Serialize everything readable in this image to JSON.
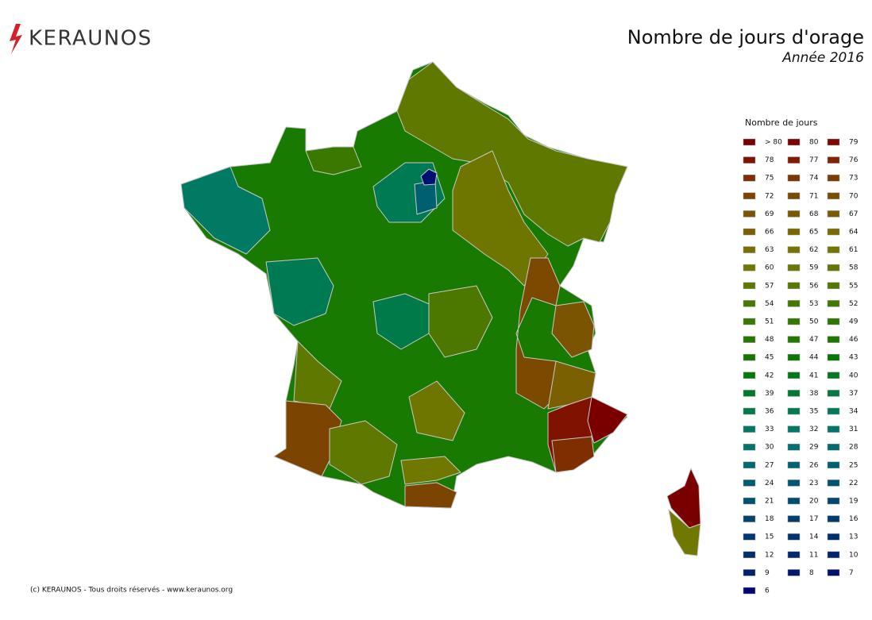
{
  "header": {
    "logo": "KERAUNOS",
    "title": "Nombre de jours d'orage",
    "subtitle": "Année 2016"
  },
  "legend": {
    "title": "Nombre de jours",
    "items": [
      {
        "label": "> 80",
        "color": "#7a0000"
      },
      {
        "label": "80",
        "color": "#7c0000"
      },
      {
        "label": "79",
        "color": "#7e0800"
      },
      {
        "label": "78",
        "color": "#7f1200"
      },
      {
        "label": "77",
        "color": "#7f1c00"
      },
      {
        "label": "76",
        "color": "#7f2600"
      },
      {
        "label": "75",
        "color": "#7e2e00"
      },
      {
        "label": "74",
        "color": "#7d3600"
      },
      {
        "label": "73",
        "color": "#7c3e00"
      },
      {
        "label": "72",
        "color": "#7b4400"
      },
      {
        "label": "71",
        "color": "#7a4a00"
      },
      {
        "label": "70",
        "color": "#7a5000"
      },
      {
        "label": "69",
        "color": "#7a5400"
      },
      {
        "label": "68",
        "color": "#7a5800"
      },
      {
        "label": "67",
        "color": "#7a5c00"
      },
      {
        "label": "66",
        "color": "#7a6000"
      },
      {
        "label": "65",
        "color": "#7a6600"
      },
      {
        "label": "64",
        "color": "#7a6c00"
      },
      {
        "label": "63",
        "color": "#7a7000"
      },
      {
        "label": "62",
        "color": "#787400"
      },
      {
        "label": "61",
        "color": "#747600"
      },
      {
        "label": "60",
        "color": "#707800"
      },
      {
        "label": "59",
        "color": "#6a7800"
      },
      {
        "label": "58",
        "color": "#647800"
      },
      {
        "label": "57",
        "color": "#5e7800"
      },
      {
        "label": "56",
        "color": "#587800"
      },
      {
        "label": "55",
        "color": "#527800"
      },
      {
        "label": "54",
        "color": "#4c7800"
      },
      {
        "label": "53",
        "color": "#467800"
      },
      {
        "label": "52",
        "color": "#407800"
      },
      {
        "label": "51",
        "color": "#3a7800"
      },
      {
        "label": "50",
        "color": "#347800"
      },
      {
        "label": "49",
        "color": "#2e7800"
      },
      {
        "label": "48",
        "color": "#287800"
      },
      {
        "label": "47",
        "color": "#227800"
      },
      {
        "label": "46",
        "color": "#1c7800"
      },
      {
        "label": "45",
        "color": "#147800"
      },
      {
        "label": "44",
        "color": "#0c7800"
      },
      {
        "label": "43",
        "color": "#047800"
      },
      {
        "label": "42",
        "color": "#007a08"
      },
      {
        "label": "41",
        "color": "#007a14"
      },
      {
        "label": "40",
        "color": "#007a20"
      },
      {
        "label": "39",
        "color": "#007a2a"
      },
      {
        "label": "38",
        "color": "#007a34"
      },
      {
        "label": "37",
        "color": "#007a3e"
      },
      {
        "label": "36",
        "color": "#007a48"
      },
      {
        "label": "35",
        "color": "#007a52"
      },
      {
        "label": "34",
        "color": "#007a5a"
      },
      {
        "label": "33",
        "color": "#007a62"
      },
      {
        "label": "32",
        "color": "#007866"
      },
      {
        "label": "31",
        "color": "#00766a"
      },
      {
        "label": "30",
        "color": "#00746e"
      },
      {
        "label": "29",
        "color": "#007070"
      },
      {
        "label": "28",
        "color": "#006c70"
      },
      {
        "label": "27",
        "color": "#006870"
      },
      {
        "label": "26",
        "color": "#006470"
      },
      {
        "label": "25",
        "color": "#006070"
      },
      {
        "label": "24",
        "color": "#005c70"
      },
      {
        "label": "23",
        "color": "#005870"
      },
      {
        "label": "22",
        "color": "#005470"
      },
      {
        "label": "21",
        "color": "#005070"
      },
      {
        "label": "20",
        "color": "#004c70"
      },
      {
        "label": "19",
        "color": "#004870"
      },
      {
        "label": "18",
        "color": "#004470"
      },
      {
        "label": "17",
        "color": "#004070"
      },
      {
        "label": "16",
        "color": "#003c70"
      },
      {
        "label": "15",
        "color": "#003870"
      },
      {
        "label": "14",
        "color": "#003470"
      },
      {
        "label": "13",
        "color": "#003070"
      },
      {
        "label": "12",
        "color": "#002c70"
      },
      {
        "label": "11",
        "color": "#002870"
      },
      {
        "label": "10",
        "color": "#002470"
      },
      {
        "label": "9",
        "color": "#002070"
      },
      {
        "label": "8",
        "color": "#001870"
      },
      {
        "label": "7",
        "color": "#001070"
      },
      {
        "label": "6",
        "color": "#000870"
      }
    ]
  },
  "footer": {
    "text": "(c) KERAUNOS - Tous droits réservés - www.keraunos.org"
  }
}
